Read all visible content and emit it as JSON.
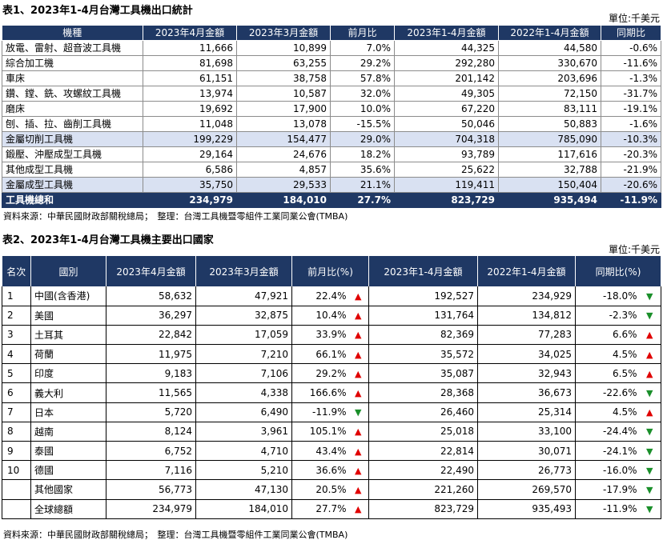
{
  "table1": {
    "title": "表1、2023年1-4月台灣工具機出口統計",
    "unit": "單位:千美元",
    "headers": [
      "機種",
      "2023年4月金額",
      "2023年3月金額",
      "前月比",
      "2023年1-4月金額",
      "2022年1-4月金額",
      "同期比"
    ],
    "rows": [
      [
        "放電、雷射、超音波工具機",
        "11,666",
        "10,899",
        "7.0%",
        "44,325",
        "44,580",
        "-0.6%"
      ],
      [
        "綜合加工機",
        "81,698",
        "63,255",
        "29.2%",
        "292,280",
        "330,670",
        "-11.6%"
      ],
      [
        "車床",
        "61,151",
        "38,758",
        "57.8%",
        "201,142",
        "203,696",
        "-1.3%"
      ],
      [
        "鑽、鏜、銑、攻螺紋工具機",
        "13,974",
        "10,587",
        "32.0%",
        "49,305",
        "72,150",
        "-31.7%"
      ],
      [
        "磨床",
        "19,692",
        "17,900",
        "10.0%",
        "67,220",
        "83,111",
        "-19.1%"
      ],
      [
        "刨、插、拉、齒削工具機",
        "11,048",
        "13,078",
        "-15.5%",
        "50,046",
        "50,883",
        "-1.6%"
      ],
      [
        "金屬切削工具機",
        "199,229",
        "154,477",
        "29.0%",
        "704,318",
        "785,090",
        "-10.3%"
      ],
      [
        "鍛壓、沖壓成型工具機",
        "29,164",
        "24,676",
        "18.2%",
        "93,789",
        "117,616",
        "-20.3%"
      ],
      [
        "其他成型工具機",
        "6,586",
        "4,857",
        "35.6%",
        "25,622",
        "32,788",
        "-21.9%"
      ],
      [
        "金屬成型工具機",
        "35,750",
        "29,533",
        "21.1%",
        "119,411",
        "150,404",
        "-20.6%"
      ],
      [
        "工具機總和",
        "234,979",
        "184,010",
        "27.7%",
        "823,729",
        "935,494",
        "-11.9%"
      ]
    ],
    "source": "資料來源：中華民國財政部關稅總局；　整理：台灣工具機暨零組件工業同業公會(TMBA)"
  },
  "table2": {
    "title": "表2、2023年1-4月台灣工具機主要出口國家",
    "unit": "單位:千美元",
    "headers": [
      "名次",
      "國別",
      "2023年4月金額",
      "2023年3月金額",
      "前月比(%)",
      "2023年1-4月金額",
      "2022年1-4月金額",
      "同期比(%)"
    ],
    "rows": [
      [
        "1",
        "中國(含香港)",
        "58,632",
        "47,921",
        "22.4%",
        "up",
        "192,527",
        "234,929",
        "-18.0%",
        "down"
      ],
      [
        "2",
        "美國",
        "36,297",
        "32,875",
        "10.4%",
        "up",
        "131,764",
        "134,812",
        "-2.3%",
        "down"
      ],
      [
        "3",
        "土耳其",
        "22,842",
        "17,059",
        "33.9%",
        "up",
        "82,369",
        "77,283",
        "6.6%",
        "up"
      ],
      [
        "4",
        "荷蘭",
        "11,975",
        "7,210",
        "66.1%",
        "up",
        "35,572",
        "34,025",
        "4.5%",
        "up"
      ],
      [
        "5",
        "印度",
        "9,183",
        "7,106",
        "29.2%",
        "up",
        "35,087",
        "32,943",
        "6.5%",
        "up"
      ],
      [
        "6",
        "義大利",
        "11,565",
        "4,338",
        "166.6%",
        "up",
        "28,368",
        "36,673",
        "-22.6%",
        "down"
      ],
      [
        "7",
        "日本",
        "5,720",
        "6,490",
        "-11.9%",
        "down",
        "26,460",
        "25,314",
        "4.5%",
        "up"
      ],
      [
        "8",
        "越南",
        "8,124",
        "3,961",
        "105.1%",
        "up",
        "25,018",
        "33,100",
        "-24.4%",
        "down"
      ],
      [
        "9",
        "泰國",
        "6,752",
        "4,710",
        "43.4%",
        "up",
        "22,814",
        "30,071",
        "-24.1%",
        "down"
      ],
      [
        "10",
        "德國",
        "7,116",
        "5,210",
        "36.6%",
        "up",
        "22,490",
        "26,773",
        "-16.0%",
        "down"
      ],
      [
        "",
        "其他國家",
        "56,773",
        "47,130",
        "20.5%",
        "up",
        "221,260",
        "269,570",
        "-17.9%",
        "down"
      ],
      [
        "",
        "全球總額",
        "234,979",
        "184,010",
        "27.7%",
        "up",
        "823,729",
        "935,493",
        "-11.9%",
        "down"
      ]
    ],
    "source": "資料來源：中華民國財政部關稅總局；　整理：台灣工具機暨零組件工業同業公會(TMBA)"
  },
  "icons": {
    "up": "▲",
    "down": "▼"
  },
  "colors": {
    "header_bg": "#1f3864",
    "highlight_bg": "#d9e1f2",
    "up": "#e00000",
    "down": "#1a8f2a"
  }
}
